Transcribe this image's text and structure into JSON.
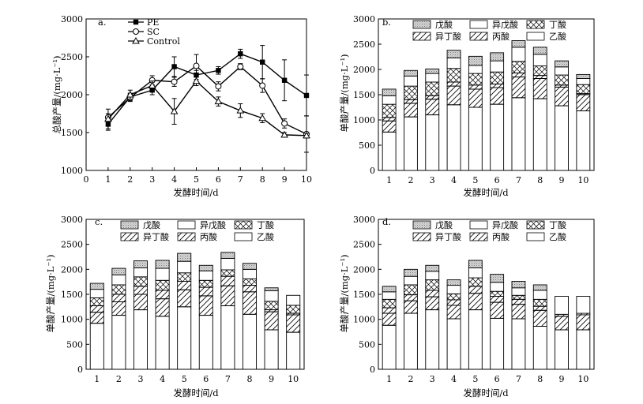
{
  "colors": {
    "axis": "#000000",
    "bar_fill": "#ffffff",
    "stipple": "#d0d0d0",
    "dark": "#888888"
  },
  "series_styles": {
    "PE": {
      "marker": "square-filled"
    },
    "SC": {
      "marker": "circle-open"
    },
    "Control": {
      "marker": "triangle-open"
    }
  },
  "chart_data": [
    {
      "id": "a",
      "panel_label": "a.",
      "type": "line",
      "title": "",
      "xlabel": "发酵时间/d",
      "ylabel": "总酸产量/(mg·L⁻¹)",
      "xlim": [
        0,
        10
      ],
      "ylim": [
        1000,
        3000
      ],
      "x_ticks": [
        "0",
        "1",
        "2",
        "3",
        "4",
        "5",
        "6",
        "7",
        "8",
        "9",
        "10"
      ],
      "y_ticks": [
        "1000",
        "1500",
        "2000",
        "2500",
        "3000"
      ],
      "x": [
        1,
        2,
        3,
        4,
        5,
        6,
        7,
        8,
        9,
        10
      ],
      "legend_position": "top-left",
      "series": [
        {
          "name": "PE",
          "values": [
            1610,
            1970,
            2060,
            2370,
            2260,
            2320,
            2540,
            2430,
            2190,
            1990
          ],
          "errors": [
            80,
            50,
            60,
            130,
            60,
            50,
            60,
            220,
            270,
            270
          ]
        },
        {
          "name": "SC",
          "values": [
            1700,
            1960,
            2190,
            2170,
            2380,
            2110,
            2370,
            2120,
            1620,
            1480
          ],
          "errors": [
            50,
            50,
            60,
            60,
            150,
            60,
            40,
            90,
            60,
            240
          ]
        },
        {
          "name": "Control",
          "values": [
            1680,
            2000,
            2120,
            1780,
            2180,
            1910,
            1790,
            1690,
            1470,
            1460
          ],
          "errors": [
            130,
            60,
            60,
            170,
            60,
            60,
            90,
            60,
            30,
            30
          ]
        }
      ]
    },
    {
      "id": "b",
      "panel_label": "b.",
      "type": "bar",
      "stacked": true,
      "xlabel": "发酵时间/d",
      "ylabel": "单酸产量/(mg·L⁻¹)",
      "ylim": [
        0,
        3000
      ],
      "categories": [
        "1",
        "2",
        "3",
        "4",
        "5",
        "6",
        "7",
        "8",
        "9",
        "10"
      ],
      "y_ticks": [
        "0",
        "500",
        "1000",
        "1500",
        "2000",
        "2500",
        "3000"
      ],
      "legend": [
        "戊酸",
        "异戊酸",
        "丁酸",
        "异丁酸",
        "丙酸",
        "乙酸"
      ],
      "series": [
        {
          "name": "乙酸",
          "pattern": "blank",
          "values": [
            760,
            1060,
            1100,
            1300,
            1250,
            1310,
            1440,
            1420,
            1280,
            1180
          ]
        },
        {
          "name": "丙酸",
          "pattern": "hatch",
          "values": [
            220,
            270,
            310,
            370,
            360,
            330,
            410,
            400,
            370,
            320
          ]
        },
        {
          "name": "异丁酸",
          "pattern": "hatch",
          "values": [
            70,
            70,
            70,
            80,
            80,
            70,
            80,
            60,
            40,
            20
          ]
        },
        {
          "name": "丁酸",
          "pattern": "cross",
          "values": [
            260,
            270,
            270,
            270,
            230,
            240,
            230,
            190,
            200,
            180
          ]
        },
        {
          "name": "异戊酸",
          "pattern": "blank",
          "values": [
            170,
            200,
            170,
            210,
            160,
            220,
            280,
            230,
            160,
            120
          ]
        },
        {
          "name": "戊酸",
          "pattern": "stipple",
          "values": [
            130,
            110,
            90,
            150,
            180,
            160,
            130,
            140,
            120,
            80
          ]
        }
      ]
    },
    {
      "id": "c",
      "panel_label": "c.",
      "type": "bar",
      "stacked": true,
      "xlabel": "发酵时间/d",
      "ylabel": "单酸产量/(mg·L⁻¹)",
      "ylim": [
        0,
        3000
      ],
      "categories": [
        "1",
        "2",
        "3",
        "4",
        "5",
        "6",
        "7",
        "8",
        "9",
        "10"
      ],
      "y_ticks": [
        "0",
        "500",
        "1000",
        "1500",
        "2000",
        "2500",
        "3000"
      ],
      "legend": [
        "戊酸",
        "异戊酸",
        "丁酸",
        "异丁酸",
        "丙酸",
        "乙酸"
      ],
      "series": [
        {
          "name": "乙酸",
          "pattern": "blank",
          "values": [
            920,
            1080,
            1190,
            1060,
            1250,
            1080,
            1270,
            1100,
            790,
            740
          ]
        },
        {
          "name": "丙酸",
          "pattern": "hatch",
          "values": [
            220,
            270,
            310,
            350,
            340,
            390,
            400,
            450,
            360,
            350
          ]
        },
        {
          "name": "异丁酸",
          "pattern": "hatch",
          "values": [
            130,
            150,
            160,
            170,
            170,
            170,
            190,
            130,
            40,
            30
          ]
        },
        {
          "name": "丁酸",
          "pattern": "cross",
          "values": [
            160,
            190,
            190,
            200,
            170,
            140,
            130,
            130,
            170,
            160
          ]
        },
        {
          "name": "异戊酸",
          "pattern": "blank",
          "values": [
            170,
            200,
            180,
            240,
            230,
            190,
            230,
            190,
            210,
            200
          ]
        },
        {
          "name": "戊酸",
          "pattern": "stipple",
          "values": [
            120,
            130,
            140,
            160,
            160,
            110,
            120,
            120,
            60,
            0
          ]
        }
      ]
    },
    {
      "id": "d",
      "panel_label": "d.",
      "type": "bar",
      "stacked": true,
      "xlabel": "发酵时间/d",
      "ylabel": "单酸产量/(mg·L⁻¹)",
      "ylim": [
        0,
        3000
      ],
      "categories": [
        "1",
        "2",
        "3",
        "4",
        "5",
        "6",
        "7",
        "8",
        "9",
        "10"
      ],
      "y_ticks": [
        "0",
        "500",
        "1000",
        "1500",
        "2000",
        "2500",
        "3000"
      ],
      "legend": [
        "戊酸",
        "异戊酸",
        "丁酸",
        "异丁酸",
        "丙酸",
        "乙酸"
      ],
      "series": [
        {
          "name": "乙酸",
          "pattern": "blank",
          "values": [
            880,
            1120,
            1190,
            1010,
            1190,
            1020,
            1010,
            860,
            790,
            790
          ]
        },
        {
          "name": "丙酸",
          "pattern": "hatch",
          "values": [
            240,
            250,
            260,
            270,
            330,
            320,
            290,
            320,
            270,
            300
          ]
        },
        {
          "name": "异丁酸",
          "pattern": "hatch",
          "values": [
            110,
            120,
            130,
            110,
            140,
            120,
            100,
            80,
            40,
            30
          ]
        },
        {
          "name": "丁酸",
          "pattern": "cross",
          "values": [
            170,
            200,
            210,
            120,
            170,
            100,
            80,
            140,
            0,
            0
          ]
        },
        {
          "name": "异戊酸",
          "pattern": "blank",
          "values": [
            150,
            170,
            170,
            170,
            200,
            180,
            150,
            180,
            360,
            340
          ]
        },
        {
          "name": "戊酸",
          "pattern": "stipple",
          "values": [
            110,
            140,
            120,
            110,
            150,
            160,
            130,
            110,
            0,
            0
          ]
        }
      ]
    }
  ]
}
